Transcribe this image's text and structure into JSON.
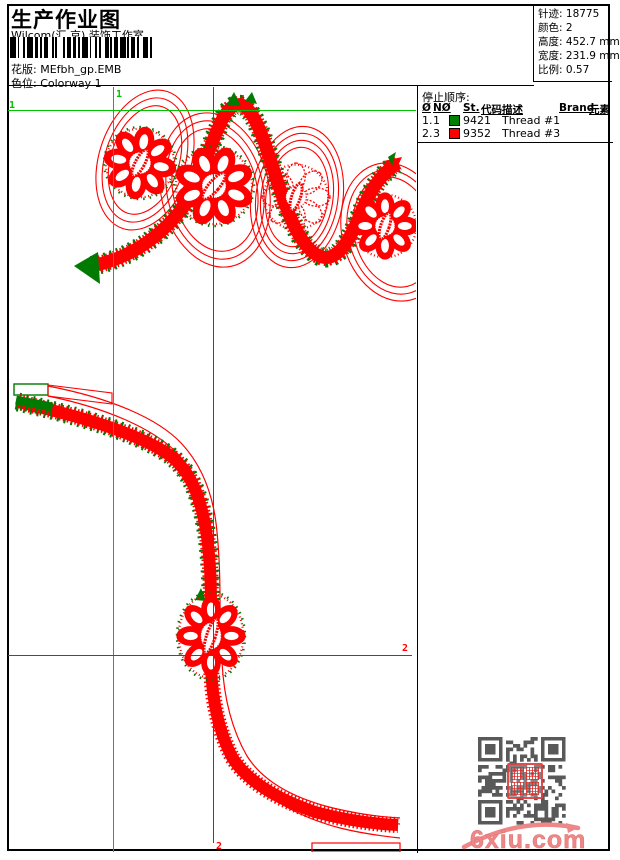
{
  "header": {
    "title": "生产作业图",
    "studio": "Wilcom(汇 京) 装饰工作室",
    "pattern_label": "花版:",
    "pattern_value": "MEfbh_gp.EMB",
    "colorway_label": "色位:",
    "colorway_value": "Colorway 1"
  },
  "info": {
    "rows": [
      {
        "label": "针迹:",
        "value": "18775"
      },
      {
        "label": "颜色:",
        "value": "2"
      },
      {
        "label": "高度:",
        "value": "452.7 mm"
      },
      {
        "label": "宽度:",
        "value": "231.9 mm"
      },
      {
        "label": "比例:",
        "value": "0.57"
      }
    ]
  },
  "stop_sequence": {
    "title": "停止顺序:",
    "columns": [
      "Ø",
      "NØ",
      "St.",
      "代码",
      "描述",
      "Brand",
      "元素"
    ],
    "rows": [
      {
        "seq": "1.",
        "needle": "1",
        "color": "#008000",
        "code": "9421",
        "desc": "Thread #1"
      },
      {
        "seq": "2.",
        "needle": "3",
        "color": "#ff0000",
        "code": "9352",
        "desc": "Thread #3"
      }
    ]
  },
  "guides": {
    "start_label": "1",
    "end_label": "2",
    "start_color": "#00c400",
    "end_color": "#ff0000"
  },
  "design_colors": {
    "red": "#ff0000",
    "green": "#007a00"
  },
  "watermark": {
    "site": "6xiu.com",
    "site_color": "#ee8787",
    "qr_color": "#595959"
  }
}
